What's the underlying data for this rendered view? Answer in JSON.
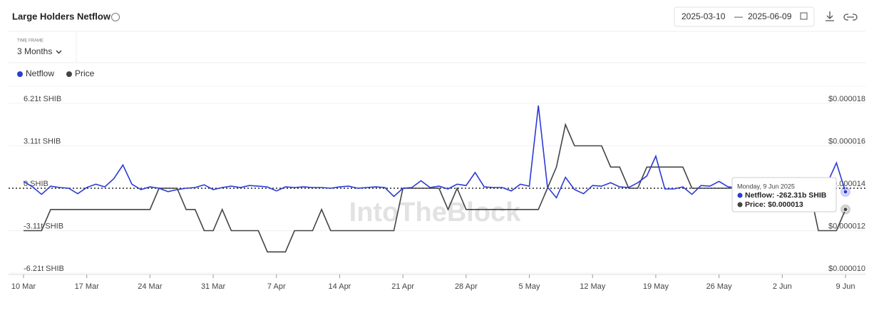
{
  "header": {
    "title": "Large Holders Netflow",
    "date_start": "2025-03-10",
    "date_separator": "—",
    "date_end": "2025-06-09",
    "time_frame_label": "TIME FRAME",
    "time_frame_value": "3 Months"
  },
  "chart_data": {
    "type": "line",
    "categories": [
      "10 Mar",
      null,
      null,
      null,
      null,
      null,
      null,
      "17 Mar",
      null,
      null,
      null,
      null,
      null,
      null,
      "24 Mar",
      null,
      null,
      null,
      null,
      null,
      null,
      "31 Mar",
      null,
      null,
      null,
      null,
      null,
      null,
      "7 Apr",
      null,
      null,
      null,
      null,
      null,
      null,
      "14 Apr",
      null,
      null,
      null,
      null,
      null,
      null,
      "21 Apr",
      null,
      null,
      null,
      null,
      null,
      null,
      "28 Apr",
      null,
      null,
      null,
      null,
      null,
      null,
      "5 May",
      null,
      null,
      null,
      null,
      null,
      null,
      "12 May",
      null,
      null,
      null,
      null,
      null,
      null,
      "19 May",
      null,
      null,
      null,
      null,
      null,
      null,
      "26 May",
      null,
      null,
      null,
      null,
      null,
      null,
      "2 Jun",
      null,
      null,
      null,
      null,
      null,
      null,
      "9 Jun"
    ],
    "series": [
      {
        "name": "Netflow",
        "color": "#2b3bd6",
        "axis": "y",
        "values": [
          0.5,
          0.1,
          -0.45,
          0.15,
          0.05,
          0,
          -0.4,
          0.05,
          0.3,
          0.1,
          0.7,
          1.7,
          0.3,
          -0.1,
          0.1,
          0,
          -0.25,
          -0.1,
          0,
          0.05,
          0.25,
          -0.1,
          0.05,
          0.15,
          0.05,
          0.2,
          0.15,
          0.1,
          -0.2,
          0.1,
          0.05,
          0.1,
          0.05,
          0.05,
          0,
          0.1,
          0.15,
          0,
          0.05,
          0.1,
          0.05,
          -0.6,
          0,
          0.05,
          0.55,
          0.05,
          0.15,
          -0.05,
          0.3,
          0.2,
          1.15,
          0.1,
          0.05,
          0.05,
          -0.2,
          0.3,
          0.15,
          6.05,
          0.1,
          -0.7,
          0.8,
          -0.1,
          -0.4,
          0.2,
          0.15,
          0.4,
          0.1,
          0.05,
          0.4,
          0.9,
          2.35,
          -0.05,
          -0.05,
          0.1,
          -0.45,
          0.2,
          0.15,
          0.5,
          0.1,
          0.05,
          0,
          0.1,
          0.3,
          0.05,
          0,
          -0.05,
          0.1,
          0.2,
          0.3,
          0.4,
          1.85,
          -0.26231
        ]
      },
      {
        "name": "Price",
        "color": "#444444",
        "axis": "y2",
        "values": [
          1.2e-05,
          1.2e-05,
          1.2e-05,
          1.3e-05,
          1.3e-05,
          1.3e-05,
          1.3e-05,
          1.3e-05,
          1.3e-05,
          1.3e-05,
          1.3e-05,
          1.3e-05,
          1.3e-05,
          1.3e-05,
          1.3e-05,
          1.4e-05,
          1.4e-05,
          1.4e-05,
          1.3e-05,
          1.3e-05,
          1.2e-05,
          1.2e-05,
          1.3e-05,
          1.2e-05,
          1.2e-05,
          1.2e-05,
          1.2e-05,
          1.1e-05,
          1.1e-05,
          1.1e-05,
          1.2e-05,
          1.2e-05,
          1.2e-05,
          1.3e-05,
          1.2e-05,
          1.2e-05,
          1.2e-05,
          1.2e-05,
          1.2e-05,
          1.2e-05,
          1.2e-05,
          1.2e-05,
          1.4e-05,
          1.4e-05,
          1.4e-05,
          1.4e-05,
          1.4e-05,
          1.3e-05,
          1.4e-05,
          1.3e-05,
          1.3e-05,
          1.3e-05,
          1.3e-05,
          1.3e-05,
          1.3e-05,
          1.3e-05,
          1.3e-05,
          1.3e-05,
          1.4e-05,
          1.5e-05,
          1.7e-05,
          1.6e-05,
          1.6e-05,
          1.6e-05,
          1.6e-05,
          1.5e-05,
          1.5e-05,
          1.4e-05,
          1.4e-05,
          1.5e-05,
          1.5e-05,
          1.5e-05,
          1.5e-05,
          1.5e-05,
          1.4e-05,
          1.4e-05,
          1.4e-05,
          1.4e-05,
          1.4e-05,
          1.4e-05,
          1.4e-05,
          1.4e-05,
          1.4e-05,
          1.4e-05,
          1.4e-05,
          1.4e-05,
          1.4e-05,
          1.4e-05,
          1.2e-05,
          1.2e-05,
          1.2e-05,
          1.3e-05
        ]
      }
    ],
    "ylim": [
      -6.21,
      6.21
    ],
    "yticks": [
      {
        "value": -6.21,
        "label": "-6.21t SHIB"
      },
      {
        "value": -3.11,
        "label": "-3.11t SHIB"
      },
      {
        "value": 0,
        "label": "0 SHIB"
      },
      {
        "value": 3.11,
        "label": "3.11t SHIB"
      },
      {
        "value": 6.21,
        "label": "6.21t SHIB"
      }
    ],
    "y2lim": [
      1e-05,
      1.8e-05
    ],
    "y2ticks": [
      {
        "value": 1e-05,
        "label": "$0.000010"
      },
      {
        "value": 1.2e-05,
        "label": "$0.000012"
      },
      {
        "value": 1.4e-05,
        "label": "$0.000014"
      },
      {
        "value": 1.6e-05,
        "label": "$0.000016"
      },
      {
        "value": 1.8e-05,
        "label": "$0.000018"
      }
    ],
    "grid": true,
    "watermark": "IntoTheBlock",
    "tooltip": {
      "date": "Monday, 9 Jun 2025",
      "lines": [
        "Netflow: -262.31b SHIB",
        "Price: $0.000013"
      ]
    }
  }
}
